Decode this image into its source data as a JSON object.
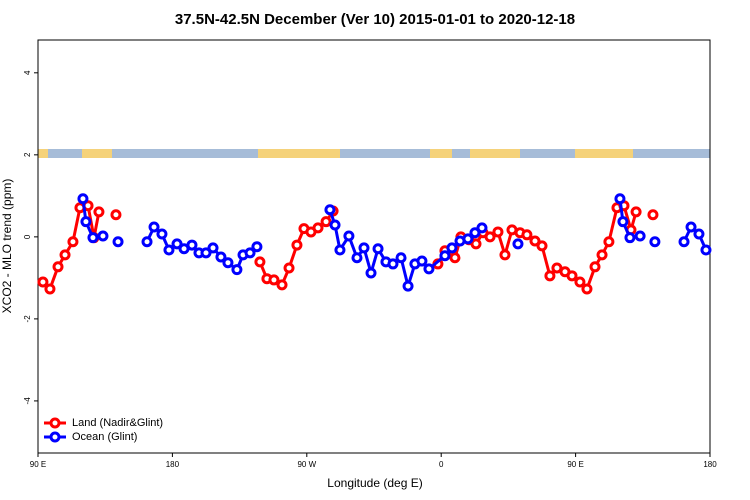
{
  "chart_data": {
    "type": "line",
    "title": "37.5N-42.5N December (Ver 10)   2015-01-01 to 2020-12-18",
    "x_label": "Longitude (deg E)",
    "y_label": "XCO2 - MLO trend (ppm)",
    "xlim": [
      90,
      540
    ],
    "xticks": [
      {
        "value": 90,
        "label": "90 E"
      },
      {
        "value": 180,
        "label": "180"
      },
      {
        "value": 270,
        "label": "90 W"
      },
      {
        "value": 360,
        "label": "0"
      },
      {
        "value": 450,
        "label": "90 E"
      },
      {
        "value": 540,
        "label": "180"
      }
    ],
    "ylim": [
      -5.27,
      4.8
    ],
    "yticks": [
      -4,
      -2,
      0,
      2,
      4
    ],
    "legend": "bottom-left",
    "series": [
      {
        "name": "Land (Nadir&Glint)",
        "color": "#ff0000",
        "x": [
          93.3,
          98.0,
          103.4,
          108.1,
          113.4,
          118.1,
          123.5,
          127.5,
          130.8,
          null,
          142.2,
          null,
          238.6,
          243.3,
          248.0,
          253.4,
          258.1,
          263.4,
          268.1,
          272.8,
          277.5,
          282.9,
          287.6,
          null,
          357.8,
          362.5,
          369.2,
          373.2,
          378.6,
          383.3,
          388.0,
          392.7,
          398.0,
          402.7,
          407.4,
          412.8,
          417.4,
          422.8,
          427.5,
          432.8,
          437.5,
          442.9,
          447.6,
          452.9,
          457.6,
          463.0,
          467.7,
          472.3,
          477.7,
          482.4,
          487.1,
          490.5,
          null,
          501.8
        ],
        "values": [
          -1.1,
          -1.27,
          -0.73,
          -0.44,
          -0.12,
          0.71,
          0.76,
          -0.02,
          0.61,
          null,
          0.54,
          null,
          -0.61,
          -1.02,
          -1.05,
          -1.17,
          -0.76,
          -0.2,
          0.2,
          0.12,
          0.22,
          0.37,
          0.63,
          null,
          -0.66,
          -0.34,
          -0.51,
          0.0,
          -0.07,
          -0.17,
          0.1,
          0.0,
          0.12,
          -0.44,
          0.17,
          0.1,
          0.05,
          -0.1,
          -0.22,
          -0.95,
          -0.76,
          -0.85,
          -0.95,
          -1.1,
          -1.27,
          -0.73,
          -0.44,
          -0.12,
          0.71,
          0.76,
          0.17,
          0.61,
          null,
          0.54
        ]
      },
      {
        "name": "Ocean (Glint)",
        "color": "#0000ff",
        "x": [
          120.1,
          122.1,
          126.8,
          133.5,
          null,
          143.6,
          null,
          163.0,
          167.7,
          173.0,
          177.7,
          183.1,
          187.8,
          193.1,
          197.8,
          202.5,
          207.2,
          212.5,
          217.2,
          223.2,
          227.3,
          232.0,
          236.6,
          null,
          285.5,
          288.9,
          292.2,
          298.2,
          303.6,
          308.3,
          313.0,
          317.7,
          323.0,
          327.7,
          333.1,
          337.8,
          342.4,
          347.1,
          351.8,
          362.5,
          367.2,
          372.6,
          377.9,
          382.6,
          387.3,
          null,
          411.4,
          null,
          479.7,
          481.7,
          486.4,
          493.2,
          null,
          503.1,
          null,
          522.6,
          527.3,
          532.6,
          537.3
        ],
        "values": [
          0.93,
          0.37,
          -0.02,
          0.02,
          null,
          -0.12,
          null,
          -0.12,
          0.24,
          0.07,
          -0.32,
          -0.17,
          -0.29,
          -0.2,
          -0.39,
          -0.39,
          -0.27,
          -0.49,
          -0.63,
          -0.8,
          -0.44,
          -0.39,
          -0.24,
          null,
          0.66,
          0.29,
          -0.32,
          0.02,
          -0.51,
          -0.27,
          -0.88,
          -0.29,
          -0.61,
          -0.66,
          -0.51,
          -1.2,
          -0.66,
          -0.59,
          -0.78,
          -0.46,
          -0.27,
          -0.1,
          -0.05,
          0.1,
          0.22,
          null,
          -0.17,
          null,
          0.93,
          0.37,
          -0.02,
          0.02,
          null,
          -0.12,
          null,
          -0.12,
          0.24,
          0.07,
          -0.32
        ]
      }
    ]
  }
}
